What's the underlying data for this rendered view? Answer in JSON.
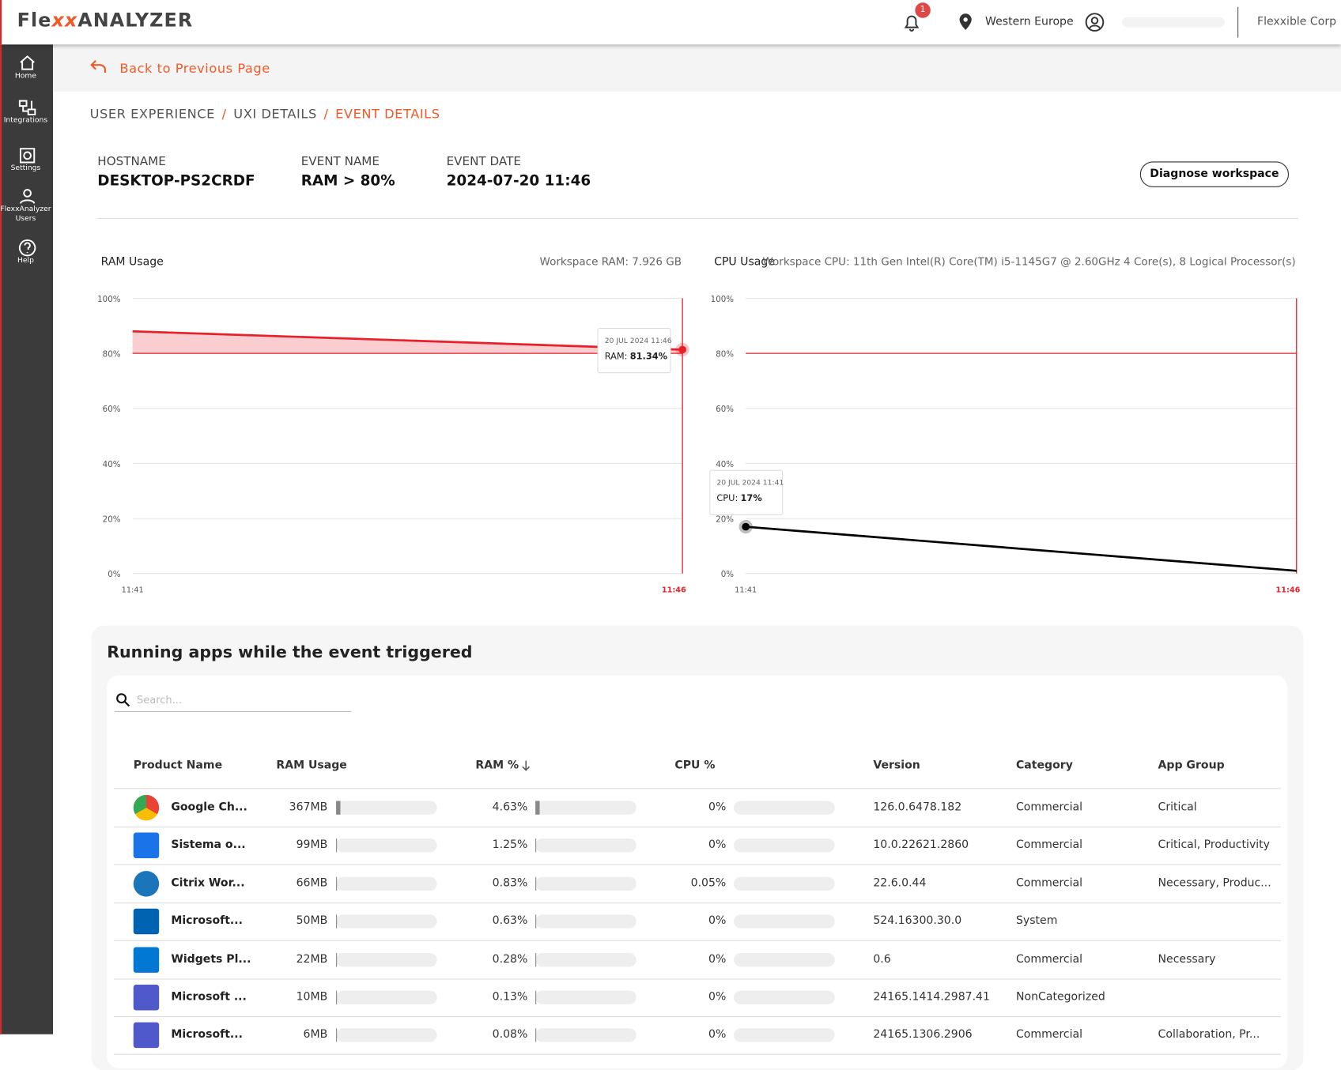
{
  "header": {
    "logo": {
      "prefix": "Fle",
      "mark": "xx",
      "suffix": "ANALYZER"
    },
    "notification_count": 1,
    "region": "Western Europe",
    "company": "Flexxible Corp"
  },
  "nav": [
    {
      "label": "Home"
    },
    {
      "label": "Integrations"
    },
    {
      "label": "Settings"
    },
    {
      "label": "FlexxAnalyzer Users"
    },
    {
      "label": "Help"
    }
  ],
  "back_link": "Back to Previous Page",
  "breadcrumb": {
    "separator": "/",
    "items": [
      "USER EXPERIENCE",
      "UXI DETAILS",
      "EVENT DETAILS"
    ]
  },
  "event": {
    "fields": [
      {
        "label": "HOSTNAME",
        "value": "DESKTOP-PS2CRDF"
      },
      {
        "label": "EVENT NAME",
        "value": "RAM > 80%"
      },
      {
        "label": "EVENT DATE",
        "value": "2024-07-20 11:46"
      }
    ],
    "action": "Diagnose workspace"
  },
  "ram_chart": {
    "type": "area",
    "title": "RAM Usage",
    "info": "Workspace RAM: 7.926 GB",
    "categories": [
      "11:41",
      "11:46"
    ],
    "values": [
      88,
      81.34
    ],
    "value_labels": [
      null,
      "81.34%"
    ],
    "color": "#e8202a",
    "threshold": 80,
    "ylim": [
      0,
      100
    ],
    "yticks": [
      {
        "value": 0,
        "label": "0%"
      },
      {
        "value": 20,
        "label": "20%"
      },
      {
        "value": 40,
        "label": "40%"
      },
      {
        "value": 60,
        "label": "60%"
      },
      {
        "value": 80,
        "label": "80%"
      },
      {
        "value": 100,
        "label": "100%"
      }
    ],
    "highlight": 1,
    "tooltip": {
      "date": "20 JUL 2024 11:46",
      "label": "RAM:"
    }
  },
  "cpu_chart": {
    "type": "line",
    "title": "CPU Usage",
    "info": "Workspace CPU: 11th Gen Intel(R) Core(TM) i5-1145G7 @ 2.60GHz 4 Core(s), 8 Logical Processor(s)",
    "categories": [
      "11:41",
      "11:46"
    ],
    "values": [
      17,
      1
    ],
    "value_labels": [
      "17%",
      null
    ],
    "color": "#000000",
    "threshold": 80,
    "ylim": [
      0,
      100
    ],
    "yticks": [
      {
        "value": 0,
        "label": "0%"
      },
      {
        "value": 20,
        "label": "20%"
      },
      {
        "value": 40,
        "label": "40%"
      },
      {
        "value": 60,
        "label": "60%"
      },
      {
        "value": 80,
        "label": "80%"
      },
      {
        "value": 100,
        "label": "100%"
      }
    ],
    "highlight": 0,
    "tooltip": {
      "date": "20 JUL 2024 11:41",
      "label": "CPU:"
    }
  },
  "apps": {
    "title": "Running apps while the event triggered",
    "search_placeholder": "Search...",
    "columns": [
      "Product Name",
      "RAM Usage",
      "RAM %",
      "CPU %",
      "Version",
      "Category",
      "App Group"
    ],
    "rows": [
      {
        "name": "Google Ch...",
        "ram": "367MB",
        "ram_pct": {
          "value": 4.63,
          "label": "4.63%"
        },
        "cpu_pct": {
          "value": 0,
          "label": "0%"
        },
        "version": "126.0.6478.182",
        "category": "Commercial",
        "app_group": "Critical"
      },
      {
        "name": "Sistema o...",
        "ram": "99MB",
        "ram_pct": {
          "value": 1.25,
          "label": "1.25%"
        },
        "cpu_pct": {
          "value": 0,
          "label": "0%"
        },
        "version": "10.0.22621.2860",
        "category": "Commercial",
        "app_group": "Critical, Productivity"
      },
      {
        "name": "Citrix Wor...",
        "ram": "66MB",
        "ram_pct": {
          "value": 0.83,
          "label": "0.83%"
        },
        "cpu_pct": {
          "value": 0.05,
          "label": "0.05%"
        },
        "version": "22.6.0.44",
        "category": "Commercial",
        "app_group": "Necessary, Produc..."
      },
      {
        "name": "Microsoft...",
        "ram": "50MB",
        "ram_pct": {
          "value": 0.63,
          "label": "0.63%"
        },
        "cpu_pct": {
          "value": 0,
          "label": "0%"
        },
        "version": "524.16300.30.0",
        "category": "System"
      },
      {
        "name": "Widgets Pl...",
        "ram": "22MB",
        "ram_pct": {
          "value": 0.28,
          "label": "0.28%"
        },
        "cpu_pct": {
          "value": 0,
          "label": "0%"
        },
        "version": "0.6",
        "category": "Commercial",
        "app_group": "Necessary"
      },
      {
        "name": "Microsoft ...",
        "ram": "10MB",
        "ram_pct": {
          "value": 0.13,
          "label": "0.13%"
        },
        "cpu_pct": {
          "value": 0,
          "label": "0%"
        },
        "version": "24165.1414.2987.41",
        "category": "NonCategorized"
      },
      {
        "name": "Microsoft...",
        "ram": "6MB",
        "ram_pct": {
          "value": 0.08,
          "label": "0.08%"
        },
        "cpu_pct": {
          "value": 0,
          "label": "0%"
        },
        "version": "24165.1306.2906",
        "category": "Commercial",
        "app_group": "Collaboration, Pr..."
      }
    ]
  }
}
